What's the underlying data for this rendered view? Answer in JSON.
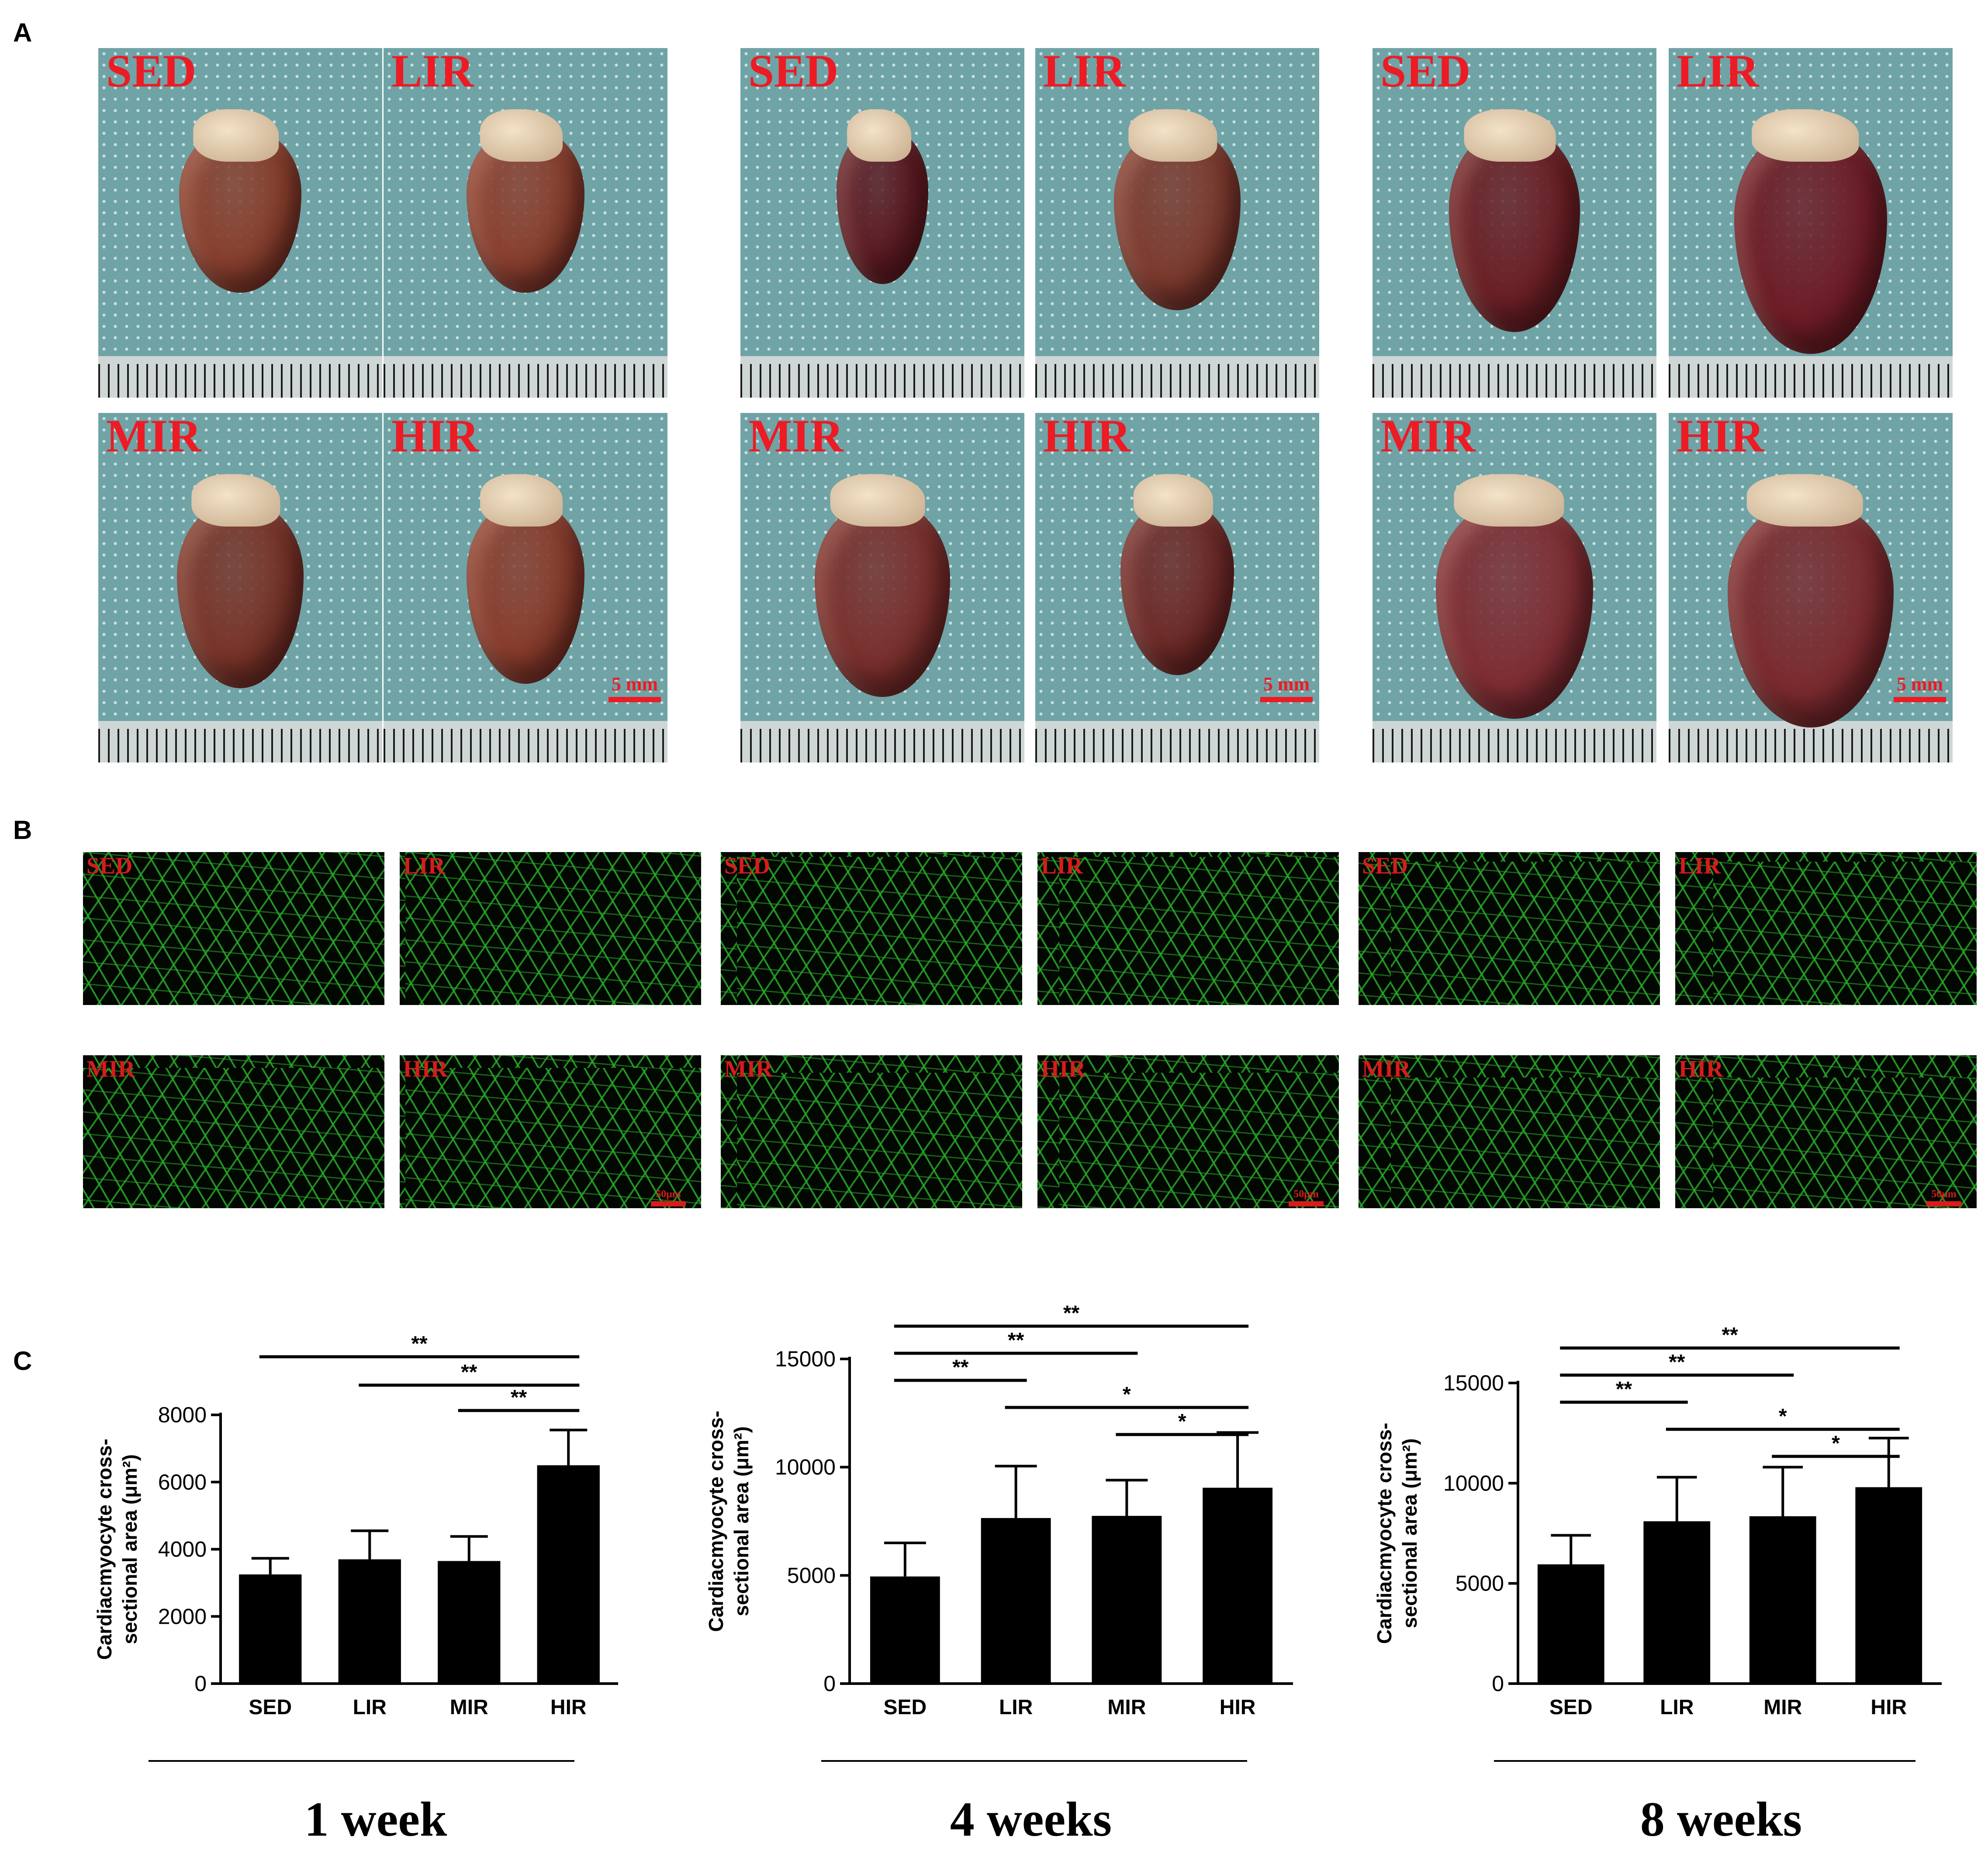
{
  "panels": {
    "a": "A",
    "b": "B",
    "c": "C"
  },
  "groups": [
    "SED",
    "LIR",
    "MIR",
    "HIR"
  ],
  "timepoints": [
    "1 week",
    "4 weeks",
    "8 weeks"
  ],
  "photo_scale": "5 mm",
  "fluo_scale": "50μm",
  "colors": {
    "label_red": "#ec1b24",
    "fluo_green": "#2fbf2f",
    "bar_fill": "#000000"
  },
  "chart_data": [
    {
      "type": "bar",
      "title": "",
      "categories": [
        "SED",
        "LIR",
        "MIR",
        "HIR"
      ],
      "values": [
        3250,
        3700,
        3650,
        6500
      ],
      "errors": [
        480,
        850,
        730,
        1050
      ],
      "ylabel_line1": "Cardiacmyocyte cross-",
      "ylabel_line2": "sectional area (μm²)",
      "yticks": [
        "0",
        "2000",
        "4000",
        "6000",
        "8000"
      ],
      "ylim": [
        0,
        8000
      ],
      "significance": [
        {
          "from": 0,
          "to": 3,
          "label": "**"
        },
        {
          "from": 1,
          "to": 3,
          "label": "**"
        },
        {
          "from": 2,
          "to": 3,
          "label": "**"
        }
      ],
      "timepoint": "1 week"
    },
    {
      "type": "bar",
      "title": "",
      "categories": [
        "SED",
        "LIR",
        "MIR",
        "HIR"
      ],
      "values": [
        4950,
        7650,
        7750,
        9050
      ],
      "errors": [
        1550,
        2400,
        1650,
        2550
      ],
      "ylabel_line1": "Cardiacmyocyte cross-",
      "ylabel_line2": "sectional area (μm²)",
      "yticks": [
        "0",
        "5000",
        "10000",
        "15000"
      ],
      "ylim": [
        0,
        15000
      ],
      "significance": [
        {
          "from": 0,
          "to": 3,
          "label": "**"
        },
        {
          "from": 0,
          "to": 2,
          "label": "**"
        },
        {
          "from": 0,
          "to": 1,
          "label": "**"
        },
        {
          "from": 1,
          "to": 3,
          "label": "*"
        },
        {
          "from": 2,
          "to": 3,
          "label": "*"
        }
      ],
      "timepoint": "4 weeks"
    },
    {
      "type": "bar",
      "title": "",
      "categories": [
        "SED",
        "LIR",
        "MIR",
        "HIR"
      ],
      "values": [
        5950,
        8100,
        8350,
        9800
      ],
      "errors": [
        1450,
        2200,
        2450,
        2450
      ],
      "ylabel_line1": "Cardiacmyocyte cross-",
      "ylabel_line2": "sectional area (μm²)",
      "yticks": [
        "0",
        "5000",
        "10000",
        "15000"
      ],
      "ylim": [
        0,
        15000
      ],
      "significance": [
        {
          "from": 0,
          "to": 3,
          "label": "**"
        },
        {
          "from": 0,
          "to": 2,
          "label": "**"
        },
        {
          "from": 0,
          "to": 1,
          "label": "**"
        },
        {
          "from": 1,
          "to": 3,
          "label": "*"
        },
        {
          "from": 2,
          "to": 3,
          "label": "*"
        }
      ],
      "timepoint": "8 weeks"
    }
  ]
}
